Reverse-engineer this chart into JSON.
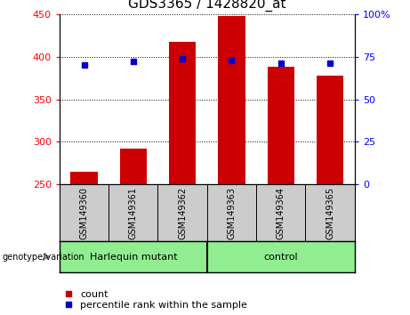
{
  "title": "GDS3365 / 1428820_at",
  "samples": [
    "GSM149360",
    "GSM149361",
    "GSM149362",
    "GSM149363",
    "GSM149364",
    "GSM149365"
  ],
  "counts": [
    265,
    292,
    418,
    448,
    388,
    378
  ],
  "percentile_ranks": [
    70,
    72,
    74,
    73,
    71,
    71
  ],
  "ylim_left": [
    250,
    450
  ],
  "ylim_right": [
    0,
    100
  ],
  "yticks_left": [
    250,
    300,
    350,
    400,
    450
  ],
  "yticks_right": [
    0,
    25,
    50,
    75,
    100
  ],
  "ytick_labels_right": [
    "0",
    "25",
    "50",
    "75",
    "100%"
  ],
  "bar_color": "#cc0000",
  "marker_color": "#0000cc",
  "bar_bottom": 250,
  "group1_label": "Harlequin mutant",
  "group2_label": "control",
  "group_label_prefix": "genotype/variation",
  "tick_area_color": "#cccccc",
  "green_color": "#90ee90",
  "plot_bg_color": "#ffffff",
  "title_fontsize": 11,
  "axis_tick_fontsize": 8,
  "sample_fontsize": 7,
  "group_fontsize": 8,
  "legend_fontsize": 8
}
